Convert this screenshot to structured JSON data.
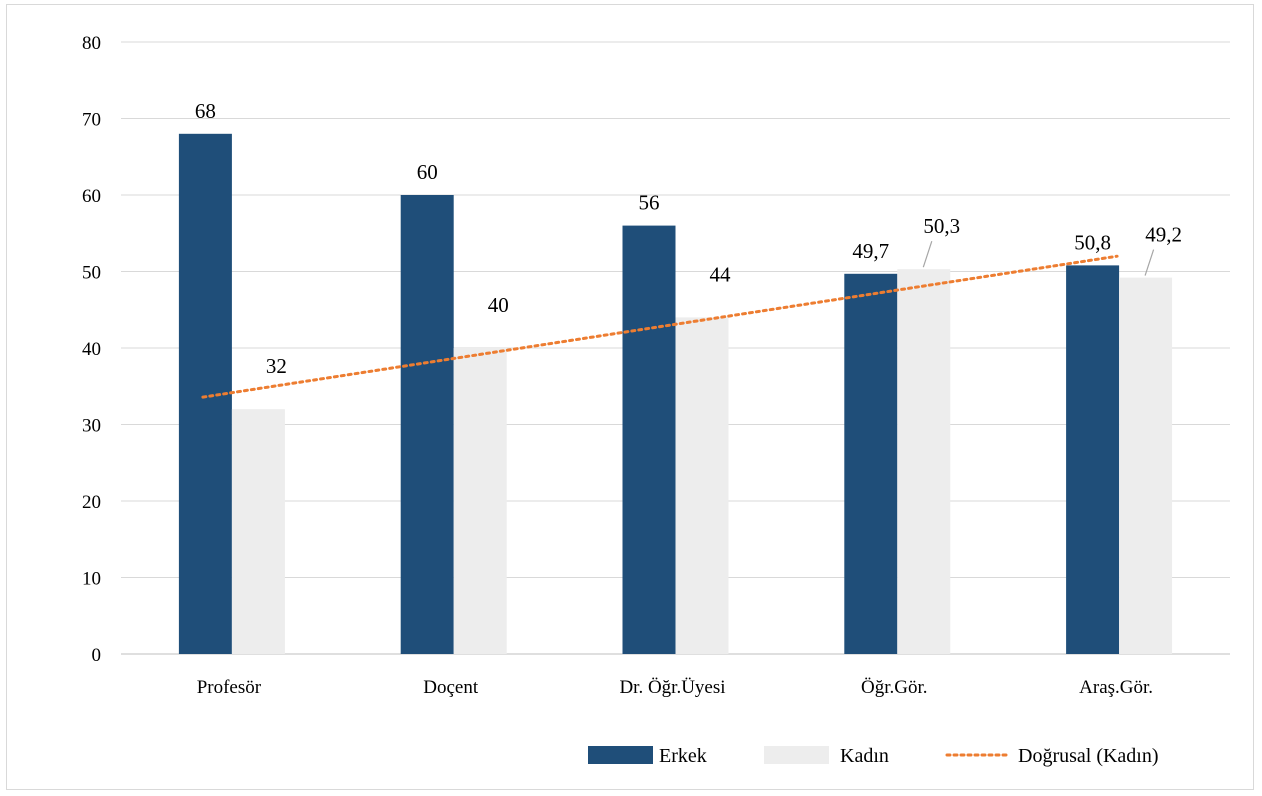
{
  "chart_data": {
    "type": "bar",
    "categories": [
      "Profesör",
      "Doçent",
      "Dr. Öğr.Üyesi",
      "Öğr.Gör.",
      "Araş.Gör."
    ],
    "series": [
      {
        "name": "Erkek",
        "values": [
          68,
          60,
          56,
          49.7,
          50.8
        ],
        "labels": [
          "68",
          "60",
          "56",
          "49,7",
          "50,8"
        ],
        "color": "#1f4e79"
      },
      {
        "name": "Kadın",
        "values": [
          32,
          40,
          44,
          50.3,
          49.2
        ],
        "labels": [
          "32",
          "40",
          "44",
          "50,3",
          "49,2"
        ],
        "color": "#ededed"
      }
    ],
    "trendline": {
      "name": "Doğrusal (Kadın)",
      "type": "linear",
      "of_series": "Kadın",
      "color": "#ed7d31",
      "style": "dotted"
    },
    "ylim": [
      0,
      80
    ],
    "yticks": [
      "0",
      "10",
      "20",
      "30",
      "40",
      "50",
      "60",
      "70",
      "80"
    ],
    "grid": true,
    "legend_position": "bottom-right",
    "xlabel": "",
    "ylabel": "",
    "title": ""
  }
}
